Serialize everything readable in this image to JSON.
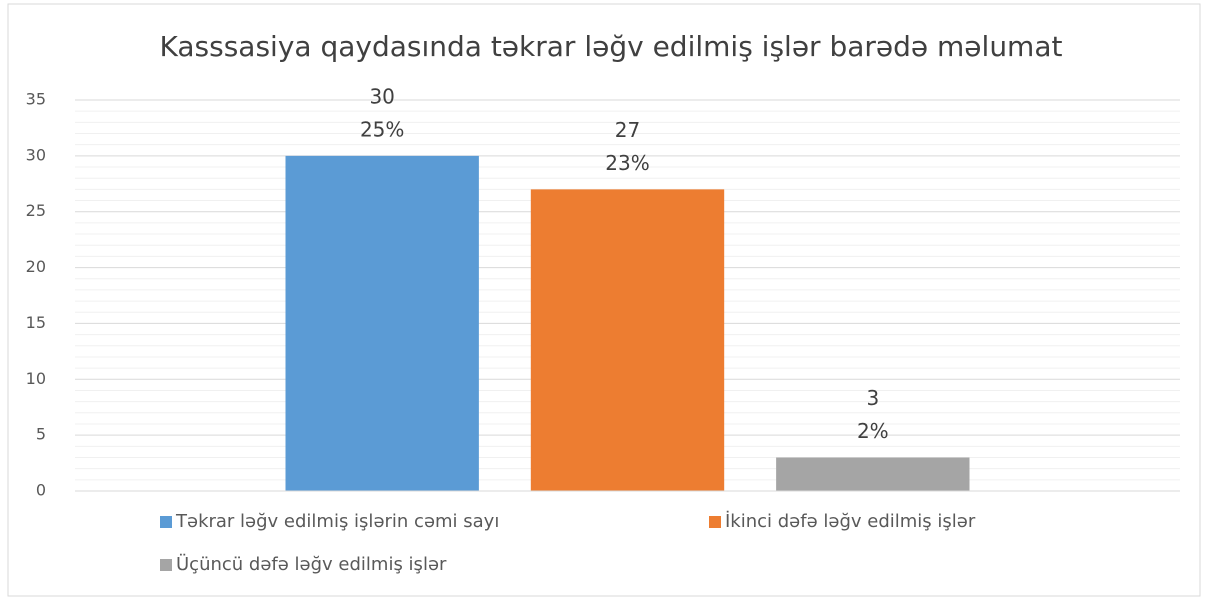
{
  "chart_data": {
    "type": "bar",
    "title": "Kasssasiya qaydasında təkrar ləğv edilmiş işlər barədə məlumat",
    "categories": [
      null
    ],
    "series": [
      {
        "name": "Təkrar ləğv edilmiş işlərin cəmi sayı",
        "color": "#5b9bd5",
        "values": [
          30
        ],
        "shares": [
          25
        ],
        "share_labels": [
          "25%"
        ]
      },
      {
        "name": "İkinci dəfə ləğv edilmiş işlər",
        "color": "#ed7d31",
        "values": [
          27
        ],
        "shares": [
          23
        ],
        "share_labels": [
          "23%"
        ]
      },
      {
        "name": "Üçüncü dəfə ləğv edilmiş işlər",
        "color": "#a5a5a5",
        "values": [
          3
        ],
        "shares": [
          2
        ],
        "share_labels": [
          "2%"
        ]
      }
    ],
    "ylim": [
      0,
      35
    ],
    "yticks": [
      0,
      5,
      10,
      15,
      20,
      25,
      30,
      35
    ],
    "minor_yticks": [
      1,
      2,
      3,
      4,
      6,
      7,
      8,
      9,
      11,
      12,
      13,
      14,
      16,
      17,
      18,
      19,
      21,
      22,
      23,
      24,
      26,
      27,
      28,
      29,
      31,
      32,
      33,
      34
    ],
    "grid": true,
    "legend": "bottom"
  }
}
